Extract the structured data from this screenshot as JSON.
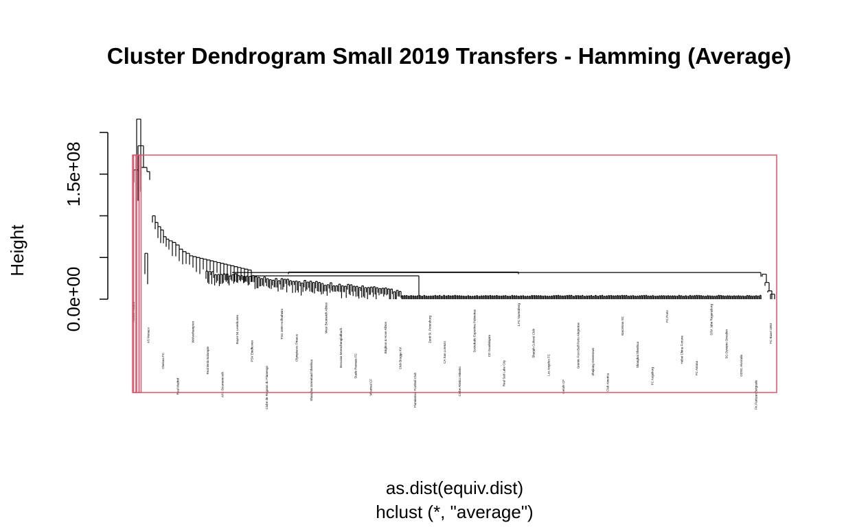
{
  "chart_data": {
    "type": "dendrogram",
    "title": "Cluster Dendrogram Small 2019 Transfers - Hamming (Average)",
    "xlabel": "as.dist(equiv.dist)",
    "sublabel": "hclust (*, \"average\")",
    "ylabel": "Height",
    "y_ticks": [
      {
        "value": 0,
        "label": "0.0e+00"
      },
      {
        "value": 50000000,
        "label": ""
      },
      {
        "value": 100000000,
        "label": ""
      },
      {
        "value": 150000000,
        "label": "1.5e+08"
      },
      {
        "value": 200000000,
        "label": ""
      }
    ],
    "ylim": [
      0,
      220000000
    ],
    "top_merge_heights": [
      216000000,
      184000000,
      158000000,
      153000000,
      143000000
    ],
    "large_cluster_merge_height": 32000000,
    "rect_hclust_color": "#DF536B",
    "leaf_labels_visible": [
      "Atletico Madrid",
      "AS Monaco",
      "Chelsea FC",
      "Real Madrid",
      "Wolverhampton",
      "Real Betis Balompie",
      "AFC Bournemouth",
      "Bayer 04 Leverkusen",
      "PSV Eindhoven",
      "Clube de Regatas do Flamengo",
      "TSG 1899 Hoffenheim",
      "Olympiacos Piraeus",
      "Shanghai Greenland Shenhua",
      "West Bromwich Albion",
      "Borussia Moenchengladbach",
      "Stade Rennais FC",
      "Villarreal CF",
      "Brighton & Hove Albion",
      "Club Brugge KV",
      "Fluminense Football Club",
      "Zenit St. Petersburg",
      "CA San Lorenzo",
      "Clube Atletico Mineiro",
      "Sociedade Esportiva Palmeiras",
      "CD Guadalajara",
      "Real Salt Lake City",
      "1.FC Nuremberg",
      "Sharjah Cultural Club",
      "Los Angeles FC",
      "Getafe CF",
      "Gremio Foot-Ball Porto Alegrense",
      "Zhejiang Greentown",
      "Club America",
      "Barcelona SC",
      "Shanghai Shenhua",
      "FC Augsburg",
      "FC Porto",
      "Hebei China Fortune",
      "FC Astana",
      "SSV Jahn Regensburg",
      "SG Dynamo Dresden",
      "GDSC Alvorada",
      "FK Partizan Belgrade",
      "FC Basel 1893"
    ]
  }
}
